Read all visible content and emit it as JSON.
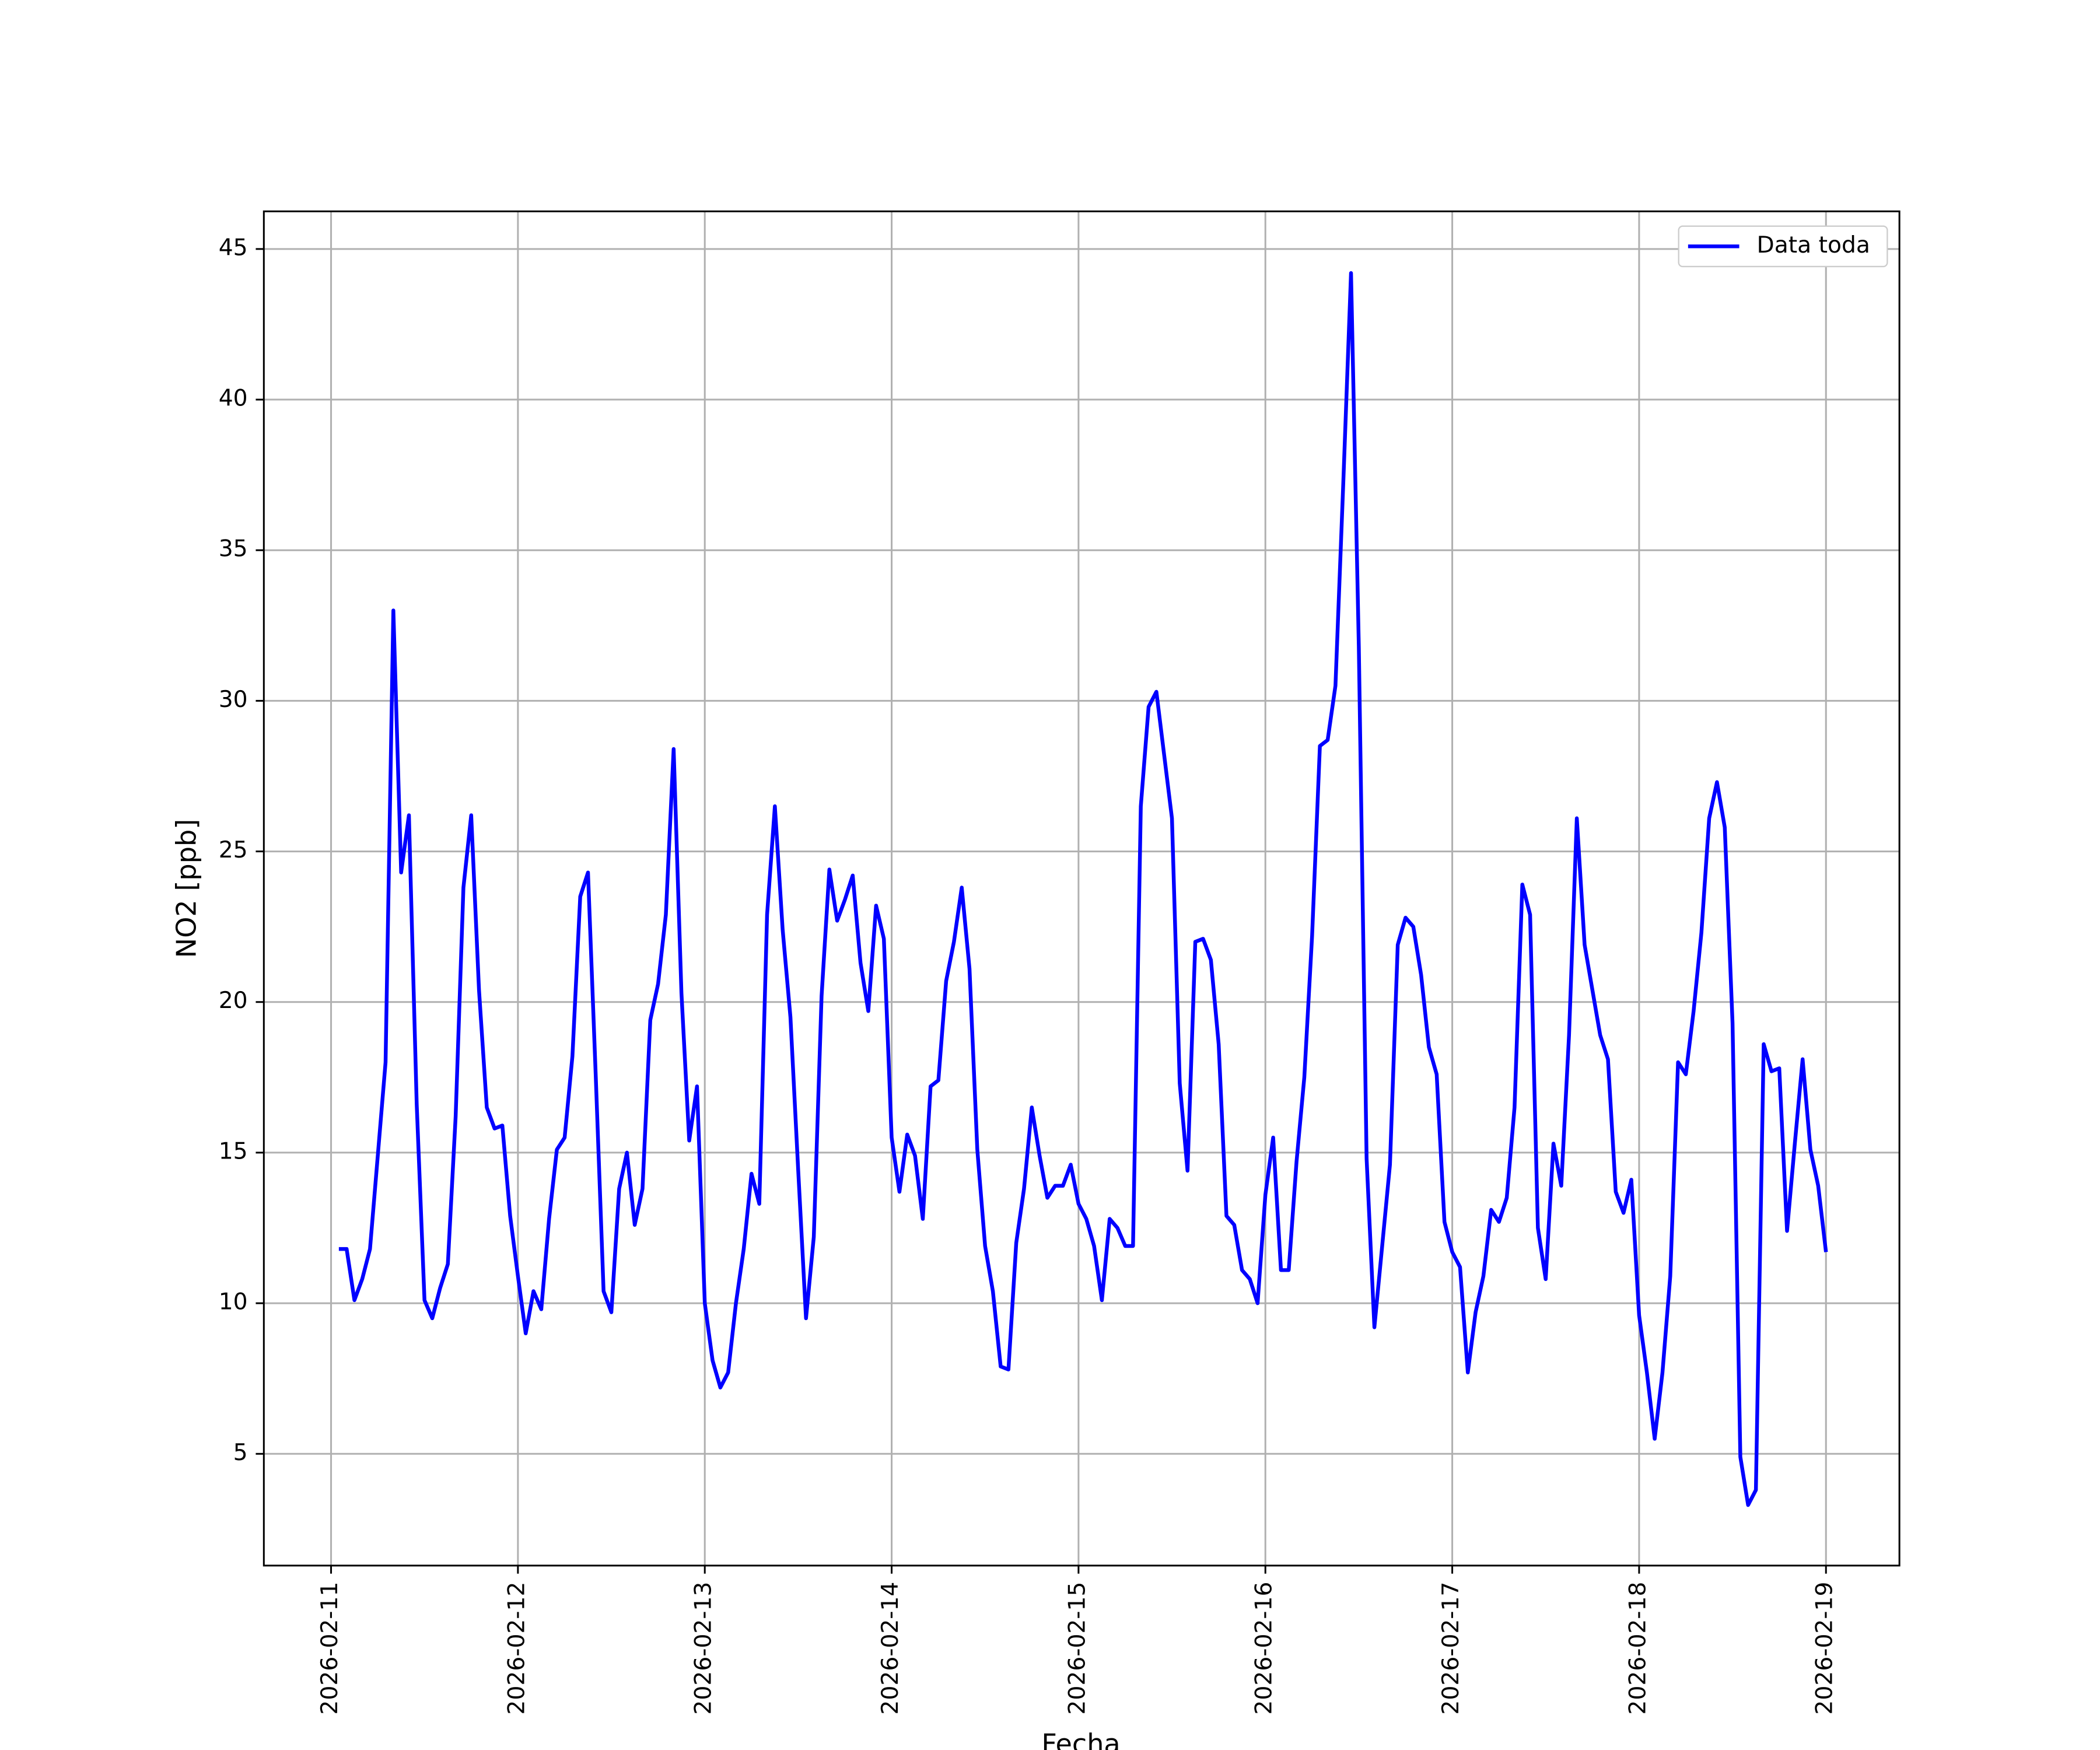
{
  "chart_data": {
    "type": "line",
    "xlabel": "Fecha",
    "ylabel": "NO2 [ppb]",
    "grid": true,
    "legend": "upper right",
    "x": [
      "2026-02-11 01:00",
      "2026-02-11 02:00",
      "2026-02-11 03:00",
      "2026-02-11 04:00",
      "2026-02-11 05:00",
      "2026-02-11 06:00",
      "2026-02-11 07:00",
      "2026-02-11 08:00",
      "2026-02-11 09:00",
      "2026-02-11 10:00",
      "2026-02-11 11:00",
      "2026-02-11 12:00",
      "2026-02-11 13:00",
      "2026-02-11 14:00",
      "2026-02-11 15:00",
      "2026-02-11 16:00",
      "2026-02-11 17:00",
      "2026-02-11 18:00",
      "2026-02-11 19:00",
      "2026-02-11 20:00",
      "2026-02-11 21:00",
      "2026-02-11 22:00",
      "2026-02-11 23:00",
      "2026-02-12 00:00",
      "2026-02-12 01:00",
      "2026-02-12 02:00",
      "2026-02-12 03:00",
      "2026-02-12 04:00",
      "2026-02-12 05:00",
      "2026-02-12 06:00",
      "2026-02-12 07:00",
      "2026-02-12 08:00",
      "2026-02-12 09:00",
      "2026-02-12 10:00",
      "2026-02-12 11:00",
      "2026-02-12 12:00",
      "2026-02-12 13:00",
      "2026-02-12 14:00",
      "2026-02-12 15:00",
      "2026-02-12 16:00",
      "2026-02-12 17:00",
      "2026-02-12 18:00",
      "2026-02-12 19:00",
      "2026-02-12 20:00",
      "2026-02-12 21:00",
      "2026-02-12 22:00",
      "2026-02-12 23:00",
      "2026-02-13 00:00",
      "2026-02-13 01:00",
      "2026-02-13 02:00",
      "2026-02-13 03:00",
      "2026-02-13 04:00",
      "2026-02-13 05:00",
      "2026-02-13 06:00",
      "2026-02-13 07:00",
      "2026-02-13 08:00",
      "2026-02-13 09:00",
      "2026-02-13 10:00",
      "2026-02-13 11:00",
      "2026-02-13 12:00",
      "2026-02-13 13:00",
      "2026-02-13 14:00",
      "2026-02-13 15:00",
      "2026-02-13 16:00",
      "2026-02-13 17:00",
      "2026-02-13 18:00",
      "2026-02-13 19:00",
      "2026-02-13 20:00",
      "2026-02-13 21:00",
      "2026-02-13 22:00",
      "2026-02-13 23:00",
      "2026-02-14 00:00",
      "2026-02-14 01:00",
      "2026-02-14 02:00",
      "2026-02-14 03:00",
      "2026-02-14 04:00",
      "2026-02-14 05:00",
      "2026-02-14 06:00",
      "2026-02-14 07:00",
      "2026-02-14 08:00",
      "2026-02-14 09:00",
      "2026-02-14 10:00",
      "2026-02-14 11:00",
      "2026-02-14 12:00",
      "2026-02-14 13:00",
      "2026-02-14 14:00",
      "2026-02-14 15:00",
      "2026-02-14 16:00",
      "2026-02-14 17:00",
      "2026-02-14 18:00",
      "2026-02-14 19:00",
      "2026-02-14 20:00",
      "2026-02-14 21:00",
      "2026-02-14 22:00",
      "2026-02-14 23:00",
      "2026-02-15 00:00",
      "2026-02-15 01:00",
      "2026-02-15 02:00",
      "2026-02-15 03:00",
      "2026-02-15 04:00",
      "2026-02-15 05:00",
      "2026-02-15 06:00",
      "2026-02-15 07:00",
      "2026-02-15 08:00",
      "2026-02-15 09:00",
      "2026-02-15 10:00",
      "2026-02-15 11:00",
      "2026-02-15 12:00",
      "2026-02-15 13:00",
      "2026-02-15 14:00",
      "2026-02-15 15:00",
      "2026-02-15 16:00",
      "2026-02-15 17:00",
      "2026-02-15 18:00",
      "2026-02-15 19:00",
      "2026-02-15 20:00",
      "2026-02-15 21:00",
      "2026-02-15 22:00",
      "2026-02-15 23:00",
      "2026-02-16 00:00",
      "2026-02-16 01:00",
      "2026-02-16 02:00",
      "2026-02-16 03:00",
      "2026-02-16 04:00",
      "2026-02-16 05:00",
      "2026-02-16 06:00",
      "2026-02-16 07:00",
      "2026-02-16 08:00",
      "2026-02-16 09:00",
      "2026-02-16 10:00",
      "2026-02-16 11:00",
      "2026-02-16 12:00",
      "2026-02-16 13:00",
      "2026-02-16 14:00",
      "2026-02-16 15:00",
      "2026-02-16 16:00",
      "2026-02-16 17:00",
      "2026-02-16 18:00",
      "2026-02-16 19:00",
      "2026-02-16 20:00",
      "2026-02-16 21:00",
      "2026-02-16 22:00",
      "2026-02-16 23:00",
      "2026-02-17 00:00",
      "2026-02-17 01:00",
      "2026-02-17 02:00",
      "2026-02-17 03:00",
      "2026-02-17 04:00",
      "2026-02-17 05:00",
      "2026-02-17 06:00",
      "2026-02-17 07:00",
      "2026-02-17 08:00",
      "2026-02-17 09:00",
      "2026-02-17 10:00",
      "2026-02-17 11:00",
      "2026-02-17 12:00",
      "2026-02-17 13:00",
      "2026-02-17 14:00",
      "2026-02-17 15:00",
      "2026-02-17 16:00",
      "2026-02-17 17:00",
      "2026-02-17 18:00",
      "2026-02-17 19:00",
      "2026-02-17 20:00",
      "2026-02-17 21:00",
      "2026-02-17 22:00",
      "2026-02-17 23:00",
      "2026-02-18 00:00",
      "2026-02-18 01:00",
      "2026-02-18 02:00",
      "2026-02-18 03:00",
      "2026-02-18 04:00",
      "2026-02-18 05:00",
      "2026-02-18 06:00",
      "2026-02-18 07:00",
      "2026-02-18 08:00",
      "2026-02-18 09:00",
      "2026-02-18 10:00",
      "2026-02-18 11:00",
      "2026-02-18 12:00",
      "2026-02-18 13:00",
      "2026-02-18 14:00",
      "2026-02-18 15:00",
      "2026-02-18 16:00",
      "2026-02-18 17:00",
      "2026-02-18 18:00",
      "2026-02-18 19:00",
      "2026-02-18 20:00",
      "2026-02-18 21:00",
      "2026-02-18 22:00",
      "2026-02-18 23:00",
      "2026-02-19 00:00"
    ],
    "series": [
      {
        "name": "Data toda",
        "color": "#0000ff",
        "values": [
          11.8,
          11.8,
          10.1,
          10.8,
          11.8,
          14.9,
          18.0,
          33.0,
          24.3,
          26.2,
          16.6,
          10.1,
          9.5,
          10.5,
          11.3,
          16.2,
          23.8,
          26.2,
          20.4,
          16.5,
          15.8,
          15.9,
          12.9,
          10.9,
          9.0,
          10.4,
          9.8,
          12.8,
          15.1,
          15.5,
          18.2,
          23.5,
          24.3,
          17.5,
          10.4,
          9.7,
          13.8,
          15.0,
          12.6,
          13.8,
          19.4,
          20.6,
          22.9,
          28.4,
          20.3,
          15.4,
          17.2,
          10.0,
          8.1,
          7.2,
          7.7,
          10.0,
          11.8,
          14.3,
          13.3,
          22.9,
          26.5,
          22.4,
          19.5,
          14.4,
          9.5,
          12.2,
          20.2,
          24.4,
          22.7,
          23.4,
          24.2,
          21.3,
          19.7,
          23.2,
          22.1,
          15.5,
          13.7,
          15.6,
          14.9,
          12.8,
          17.2,
          17.4,
          20.7,
          22.0,
          23.8,
          21.1,
          15.1,
          11.9,
          10.4,
          7.9,
          7.8,
          12.0,
          13.8,
          16.5,
          14.9,
          13.5,
          13.9,
          13.9,
          14.6,
          13.3,
          12.8,
          11.9,
          10.1,
          12.8,
          12.5,
          11.9,
          11.9,
          26.5,
          29.8,
          30.3,
          28.2,
          26.1,
          17.3,
          14.4,
          22.0,
          22.1,
          21.4,
          18.6,
          12.9,
          12.6,
          11.1,
          10.8,
          10.0,
          13.6,
          15.5,
          11.1,
          11.1,
          14.7,
          17.5,
          22.2,
          28.5,
          28.7,
          30.5,
          37.2,
          44.2,
          31.8,
          14.8,
          9.2,
          11.9,
          14.6,
          21.9,
          22.8,
          22.5,
          20.9,
          18.5,
          17.6,
          12.7,
          11.7,
          11.2,
          7.7,
          9.7,
          10.9,
          13.1,
          12.7,
          13.5,
          16.5,
          23.9,
          22.9,
          12.5,
          10.8,
          15.3,
          13.9,
          18.9,
          26.1,
          21.9,
          20.4,
          18.9,
          18.1,
          13.7,
          13.0,
          14.1,
          9.6,
          7.7,
          5.5,
          7.7,
          10.9,
          18.0,
          17.6,
          19.7,
          22.3,
          26.1,
          27.3,
          25.8,
          19.3,
          4.9,
          3.3,
          3.8,
          18.6,
          17.7,
          17.8,
          12.4,
          15.3,
          18.1,
          15.1,
          13.9,
          11.7
        ]
      }
    ],
    "xlim": [
      "2026-02-10 15:22",
      "2026-02-19 09:26"
    ],
    "xticks": [
      "2026-02-11",
      "2026-02-12",
      "2026-02-13",
      "2026-02-14",
      "2026-02-15",
      "2026-02-16",
      "2026-02-17",
      "2026-02-18",
      "2026-02-19"
    ],
    "ylim": [
      1.29,
      46.25
    ],
    "yticks": [
      5,
      10,
      15,
      20,
      25,
      30,
      35,
      40,
      45
    ]
  }
}
